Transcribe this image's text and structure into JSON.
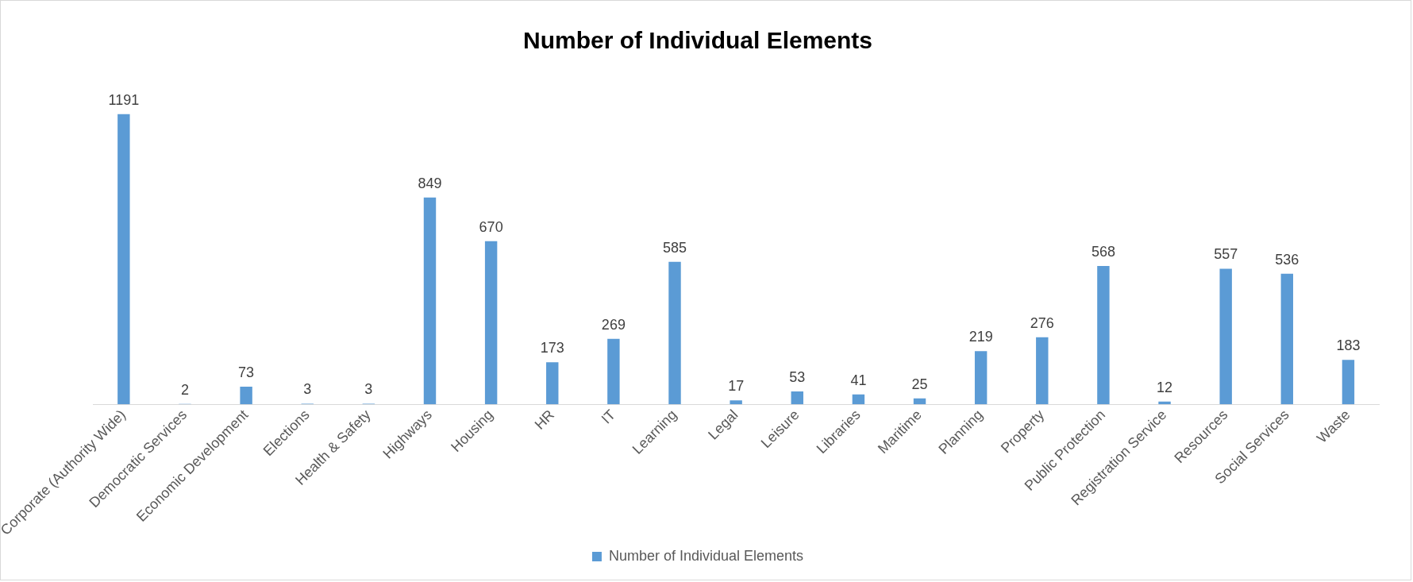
{
  "chart_data": {
    "type": "bar",
    "title": "Number of Individual Elements",
    "categories": [
      "Corporate (Authority Wide)",
      "Democratic Services",
      "Economic Development",
      "Elections",
      "Health & Safety",
      "Highways",
      "Housing",
      "HR",
      "IT",
      "Learning",
      "Legal",
      "Leisure",
      "Libraries",
      "Maritime",
      "Planning",
      "Property",
      "Public Protection",
      "Registration Service",
      "Resources",
      "Social Services",
      "Waste"
    ],
    "series": [
      {
        "name": "Number of Individual Elements",
        "color": "#5b9bd5",
        "values": [
          1191,
          2,
          73,
          3,
          3,
          849,
          670,
          173,
          269,
          585,
          17,
          53,
          41,
          25,
          219,
          276,
          568,
          12,
          557,
          536,
          183
        ]
      }
    ],
    "data_labels": true,
    "grid": false,
    "legend": "bottom",
    "tick_labels": "x"
  }
}
